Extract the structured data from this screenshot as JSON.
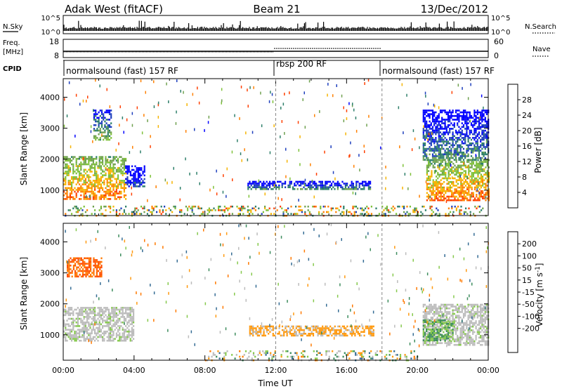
{
  "header": {
    "station": "Adak West (fitACF)",
    "beam": "Beam 21",
    "date": "13/Dec/2012"
  },
  "strip_panels": {
    "nsky": {
      "label": "N.Sky",
      "tick_top": "10^5",
      "tick_bottom": "10^0",
      "right_label": "N.Search",
      "right_tick_top": "10^5",
      "right_tick_bottom": "10^0"
    },
    "freq": {
      "label_line1": "Freq.",
      "label_line2": "[MHz]",
      "tick_top": "18",
      "tick_bottom": "8",
      "right_label": "Nave",
      "right_tick_top": "60",
      "right_tick_bottom": "0"
    },
    "cpid": {
      "label": "CPID",
      "segments": [
        {
          "name": "normalsound (fast) 157 RF",
          "start_hour": 0,
          "end_hour": 12
        },
        {
          "name": "rbsp 200 RF",
          "start_hour": 12,
          "end_hour": 18
        },
        {
          "name": "normalsound (fast) 157 RF",
          "start_hour": 18,
          "end_hour": 24
        }
      ]
    }
  },
  "x_axis": {
    "label": "Time UT",
    "ticks": [
      "00:00",
      "04:00",
      "08:00",
      "12:00",
      "16:00",
      "20:00",
      "00:00"
    ]
  },
  "colors": {
    "power": [
      "#0000ff",
      "#1e3fbd",
      "#2e7f6a",
      "#6fa14f",
      "#7fc13a",
      "#f6b400",
      "#ff8000",
      "#ff4000",
      "#e00000"
    ],
    "velocity": [
      "#0026a0",
      "#356c94",
      "#3e8d5e",
      "#86c94c",
      "#bcbcbc",
      "#bcbcbc",
      "#ff9a10",
      "#ff7a00",
      "#ff5000",
      "#e00000"
    ]
  },
  "chart_data": [
    {
      "type": "heatmap",
      "panel": "power",
      "ylabel": "Slant Range [km]",
      "xlabel": "Time UT",
      "xlim": [
        0,
        24
      ],
      "ylim": [
        180,
        4600
      ],
      "yticks": [
        "1000",
        "2000",
        "3000",
        "4000"
      ],
      "colorbar_label": "Power [dB]",
      "colorbar_ticks": [
        "4",
        "8",
        "12",
        "16",
        "20",
        "24",
        "28"
      ],
      "echo_regions": [
        {
          "start_hour": 0.0,
          "end_hour": 3.5,
          "range_min_km": 700,
          "range_max_km": 2100,
          "power_db": 26
        },
        {
          "start_hour": 1.7,
          "end_hour": 2.7,
          "range_min_km": 2600,
          "range_max_km": 3600,
          "power_db": 14
        },
        {
          "start_hour": 3.5,
          "end_hour": 4.6,
          "range_min_km": 1100,
          "range_max_km": 1800,
          "power_db": 6
        },
        {
          "start_hour": 10.4,
          "end_hour": 17.3,
          "range_min_km": 1050,
          "range_max_km": 1300,
          "power_db": 10
        },
        {
          "start_hour": 20.5,
          "end_hour": 24.0,
          "range_min_km": 700,
          "range_max_km": 2000,
          "power_db": 26
        },
        {
          "start_hour": 20.3,
          "end_hour": 24.0,
          "range_min_km": 2000,
          "range_max_km": 3600,
          "power_db": 10
        },
        {
          "start_hour": 0.0,
          "end_hour": 24.0,
          "range_min_km": 180,
          "range_max_km": 500,
          "power_db": 12
        }
      ]
    },
    {
      "type": "heatmap",
      "panel": "velocity",
      "ylabel": "Slant Range [km]",
      "xlabel": "Time UT",
      "xlim": [
        0,
        24
      ],
      "ylim": [
        180,
        4600
      ],
      "yticks": [
        "1000",
        "2000",
        "3000",
        "4000"
      ],
      "colorbar_label": "Velocity [m s^-1]",
      "colorbar_ticks": [
        "200",
        "100",
        "50",
        "15",
        "-15",
        "-50",
        "-100",
        "-200"
      ],
      "echo_regions": [
        {
          "start_hour": 0.0,
          "end_hour": 4.0,
          "range_min_km": 800,
          "range_max_km": 1900,
          "velocity_ms": 0
        },
        {
          "start_hour": 0.2,
          "end_hour": 2.2,
          "range_min_km": 2900,
          "range_max_km": 3500,
          "velocity_ms": -200
        },
        {
          "start_hour": 10.5,
          "end_hour": 17.5,
          "range_min_km": 950,
          "range_max_km": 1300,
          "velocity_ms": -60
        },
        {
          "start_hour": 20.3,
          "end_hour": 24.0,
          "range_min_km": 700,
          "range_max_km": 2000,
          "velocity_ms": 0
        },
        {
          "start_hour": 20.3,
          "end_hour": 22.0,
          "range_min_km": 800,
          "range_max_km": 1500,
          "velocity_ms": 50
        },
        {
          "start_hour": 8.0,
          "end_hour": 20.0,
          "range_min_km": 180,
          "range_max_km": 500,
          "velocity_ms": 30
        }
      ]
    }
  ]
}
